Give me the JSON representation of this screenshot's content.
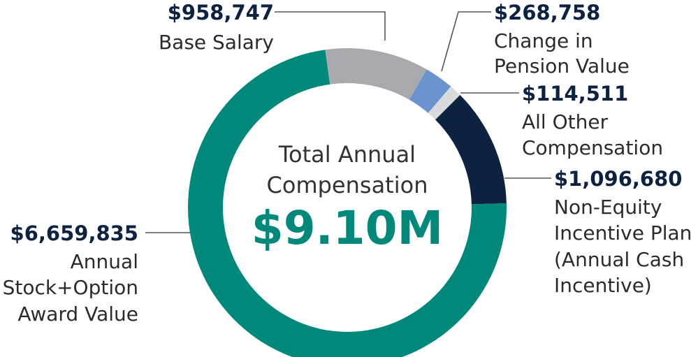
{
  "chart_data": {
    "type": "pie",
    "center": {
      "label_lines": [
        "Total Annual",
        "Compensation"
      ],
      "total": "$9.10M"
    },
    "slices": [
      {
        "id": "base-salary",
        "value": 958747,
        "amount_label": "$958,747",
        "desc_lines": [
          "Base Salary"
        ],
        "color": "#a7a9ac"
      },
      {
        "id": "pension",
        "value": 268758,
        "amount_label": "$268,758",
        "desc_lines": [
          "Change in",
          "Pension Value"
        ],
        "color": "#6b93d0"
      },
      {
        "id": "other",
        "value": 114511,
        "amount_label": "$114,511",
        "desc_lines": [
          "All Other",
          "Compensation"
        ],
        "color": "#d9dadc"
      },
      {
        "id": "non-equity",
        "value": 1096680,
        "amount_label": "$1,096,680",
        "desc_lines": [
          "Non-Equity",
          "Incentive Plan",
          "(Annual Cash",
          "Incentive)"
        ],
        "color": "#0d2240"
      },
      {
        "id": "stock-option",
        "value": 6659835,
        "amount_label": "$6,659,835",
        "desc_lines": [
          "Annual",
          "Stock+Option",
          "Award Value"
        ],
        "color": "#00897b"
      }
    ]
  }
}
